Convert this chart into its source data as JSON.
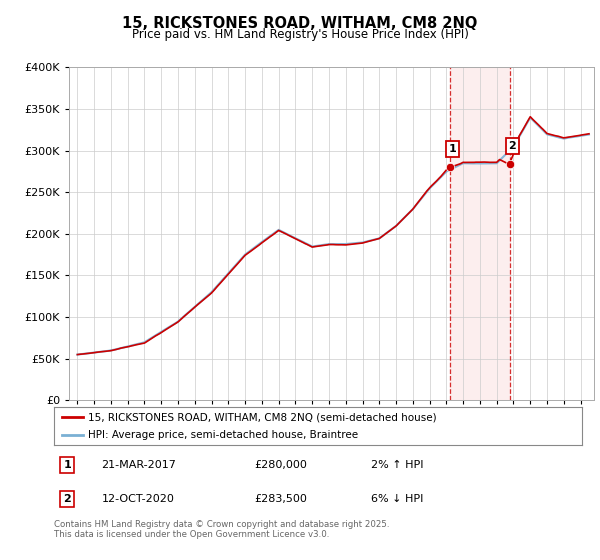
{
  "title": "15, RICKSTONES ROAD, WITHAM, CM8 2NQ",
  "subtitle": "Price paid vs. HM Land Registry's House Price Index (HPI)",
  "ylim": [
    0,
    400000
  ],
  "yticks": [
    0,
    50000,
    100000,
    150000,
    200000,
    250000,
    300000,
    350000,
    400000
  ],
  "xmin": 1994.5,
  "xmax": 2025.8,
  "transaction1": {
    "date": "21-MAR-2017",
    "price": 280000,
    "pct": "2%",
    "dir": "↑",
    "x": 2017.22
  },
  "transaction2": {
    "date": "12-OCT-2020",
    "price": 283500,
    "pct": "6%",
    "dir": "↓",
    "x": 2020.78
  },
  "legend_line1": "15, RICKSTONES ROAD, WITHAM, CM8 2NQ (semi-detached house)",
  "legend_line2": "HPI: Average price, semi-detached house, Braintree",
  "footnote": "Contains HM Land Registry data © Crown copyright and database right 2025.\nThis data is licensed under the Open Government Licence v3.0.",
  "table_rows": [
    {
      "num": "1",
      "date": "21-MAR-2017",
      "price": "£280,000",
      "pct": "2% ↑ HPI"
    },
    {
      "num": "2",
      "date": "12-OCT-2020",
      "price": "£283,500",
      "pct": "6% ↓ HPI"
    }
  ],
  "line_color_red": "#cc0000",
  "line_color_blue": "#7ab0d4",
  "bg_color": "#ffffff",
  "grid_color": "#cccccc",
  "marker_color_red": "#cc0000",
  "transaction_shade": "#fce8e8"
}
